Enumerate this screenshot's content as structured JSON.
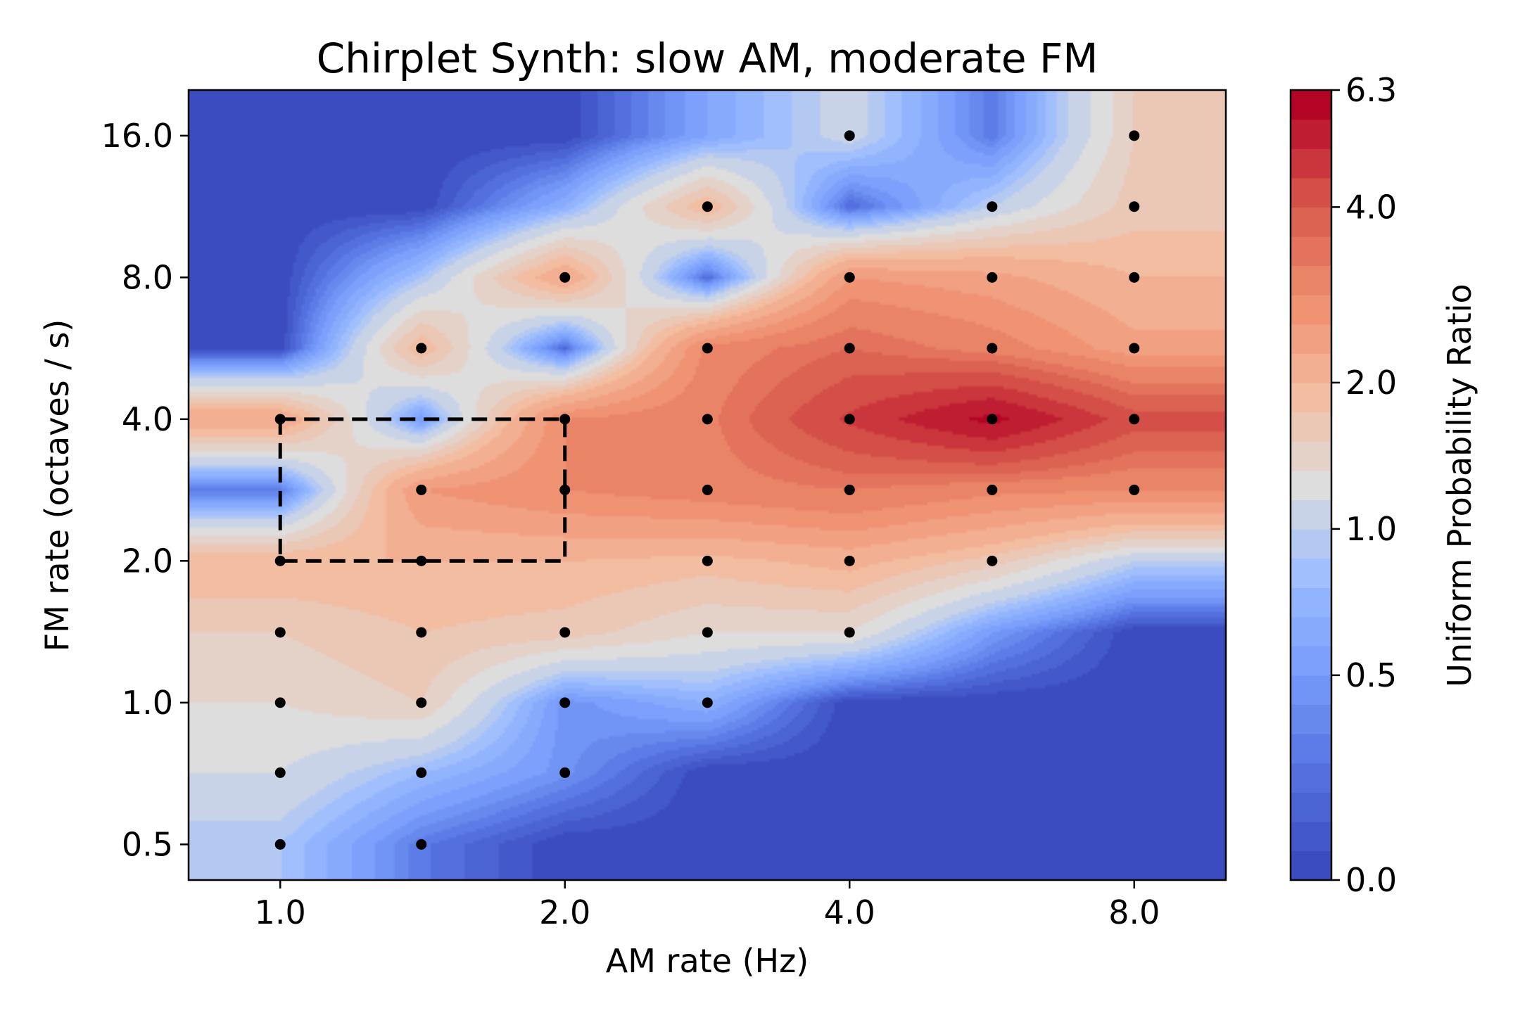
{
  "chart_data": {
    "type": "heatmap",
    "title": "Chirplet Synth: slow AM, moderate FM",
    "xlabel": "AM rate (Hz)",
    "ylabel": "FM rate (octaves / s)",
    "x_scale": "log2",
    "y_scale": "log2",
    "xlim": [
      0.8,
      10.0
    ],
    "ylim": [
      0.42,
      20.0
    ],
    "x_ticks": [
      1.0,
      2.0,
      4.0,
      8.0
    ],
    "x_tick_labels": [
      "1.0",
      "2.0",
      "4.0",
      "8.0"
    ],
    "y_ticks": [
      0.5,
      1.0,
      2.0,
      4.0,
      8.0,
      16.0
    ],
    "y_tick_labels": [
      "0.5",
      "1.0",
      "2.0",
      "4.0",
      "8.0",
      "16.0"
    ],
    "x": [
      1.0,
      1.41,
      2.0,
      2.83,
      4.0,
      5.66,
      8.0
    ],
    "y": [
      0.5,
      0.71,
      1.0,
      1.41,
      2.0,
      2.83,
      4.0,
      5.66,
      8.0,
      11.31,
      16.0
    ],
    "z": [
      [
        0.9,
        0.3,
        0.0,
        0.0,
        0.0,
        0.0,
        0.0
      ],
      [
        1.2,
        0.8,
        0.45,
        0.0,
        0.0,
        0.0,
        0.0
      ],
      [
        1.4,
        1.6,
        0.45,
        0.7,
        0.0,
        0.0,
        0.0
      ],
      [
        1.6,
        1.8,
        1.7,
        1.4,
        1.4,
        0.5,
        0.0
      ],
      [
        2.0,
        2.0,
        2.0,
        1.9,
        2.1,
        1.7,
        1.0
      ],
      [
        0.3,
        2.6,
        2.9,
        3.1,
        3.3,
        3.0,
        2.9
      ],
      [
        2.3,
        0.5,
        2.9,
        3.2,
        4.6,
        5.8,
        4.2
      ],
      [
        0.0,
        2.0,
        0.2,
        3.0,
        3.6,
        3.1,
        2.4
      ],
      [
        0.0,
        0.9,
        2.3,
        0.2,
        2.6,
        2.4,
        2.0
      ],
      [
        0.0,
        0.0,
        0.7,
        2.0,
        0.2,
        1.0,
        1.7
      ],
      [
        0.0,
        0.0,
        0.0,
        0.6,
        1.1,
        0.3,
        1.6
      ]
    ],
    "points": [
      [
        1.0,
        0.5
      ],
      [
        1.0,
        0.71
      ],
      [
        1.0,
        1.0
      ],
      [
        1.0,
        1.41
      ],
      [
        1.0,
        2.0
      ],
      [
        1.0,
        4.0
      ],
      [
        1.41,
        0.5
      ],
      [
        1.41,
        0.71
      ],
      [
        1.41,
        1.0
      ],
      [
        1.41,
        1.41
      ],
      [
        1.41,
        2.0
      ],
      [
        1.41,
        2.83
      ],
      [
        1.41,
        5.66
      ],
      [
        2.0,
        0.71
      ],
      [
        2.0,
        1.0
      ],
      [
        2.0,
        1.41
      ],
      [
        2.0,
        2.83
      ],
      [
        2.0,
        4.0
      ],
      [
        2.0,
        8.0
      ],
      [
        2.83,
        1.0
      ],
      [
        2.83,
        1.41
      ],
      [
        2.83,
        2.0
      ],
      [
        2.83,
        2.83
      ],
      [
        2.83,
        4.0
      ],
      [
        2.83,
        5.66
      ],
      [
        2.83,
        11.31
      ],
      [
        4.0,
        1.41
      ],
      [
        4.0,
        2.0
      ],
      [
        4.0,
        2.83
      ],
      [
        4.0,
        4.0
      ],
      [
        4.0,
        5.66
      ],
      [
        4.0,
        8.0
      ],
      [
        4.0,
        16.0
      ],
      [
        5.66,
        2.0
      ],
      [
        5.66,
        2.83
      ],
      [
        5.66,
        4.0
      ],
      [
        5.66,
        5.66
      ],
      [
        5.66,
        8.0
      ],
      [
        5.66,
        11.31
      ],
      [
        8.0,
        2.83
      ],
      [
        8.0,
        4.0
      ],
      [
        8.0,
        5.66
      ],
      [
        8.0,
        8.0
      ],
      [
        8.0,
        11.31
      ],
      [
        8.0,
        16.0
      ]
    ],
    "highlight_box": {
      "x0": 1.0,
      "x1": 2.0,
      "y0": 2.0,
      "y1": 4.0,
      "style": "dashed",
      "color": "#000000"
    },
    "colorbar": {
      "label": "Uniform Probability Ratio",
      "colormap": "coolwarm",
      "range": [
        0.0,
        6.3
      ],
      "ticks": [
        0.0,
        0.5,
        1.0,
        2.0,
        4.0,
        6.3
      ],
      "tick_labels": [
        "0.0",
        "0.5",
        "1.0",
        "2.0",
        "4.0",
        "6.3"
      ],
      "levels": [
        0.0,
        0.07,
        0.14,
        0.21,
        0.28,
        0.35,
        0.42,
        0.5,
        0.6,
        0.7,
        0.8,
        0.9,
        1.0,
        1.2,
        1.4,
        1.6,
        1.8,
        2.0,
        2.3,
        2.6,
        2.9,
        3.3,
        3.6,
        4.0,
        4.5,
        5.0,
        5.6,
        6.3
      ]
    }
  }
}
